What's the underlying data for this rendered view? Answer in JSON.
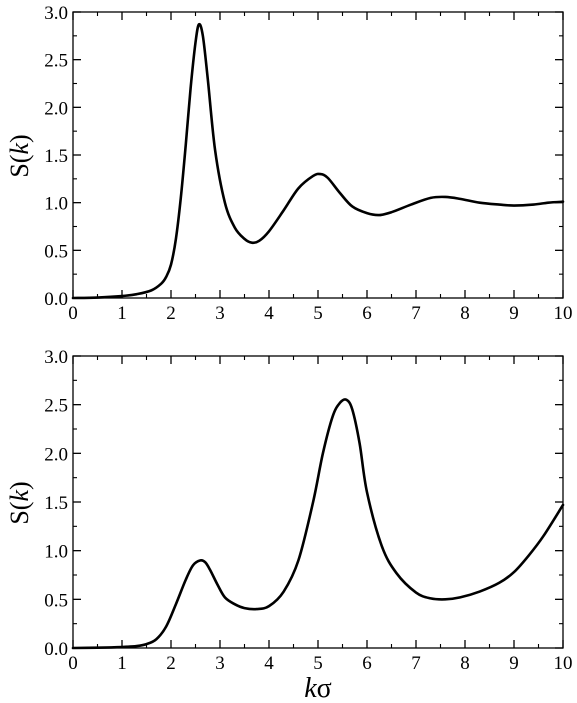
{
  "chart_data": [
    {
      "type": "line",
      "panel": "top",
      "ylabel_base": "S(",
      "ylabel_var": "k",
      "ylabel_close": ")",
      "xlim": [
        0,
        10
      ],
      "ylim": [
        0,
        3
      ],
      "xticks": [
        "0",
        "1",
        "2",
        "3",
        "4",
        "5",
        "6",
        "7",
        "8",
        "9",
        "10"
      ],
      "yticks": [
        "0.0",
        "0.5",
        "1.0",
        "1.5",
        "2.0",
        "2.5",
        "3.0"
      ],
      "series": [
        {
          "x": [
            0,
            0.5,
            1.0,
            1.3,
            1.6,
            1.8,
            1.9,
            2.0,
            2.1,
            2.2,
            2.3,
            2.4,
            2.5,
            2.57,
            2.65,
            2.75,
            2.9,
            3.1,
            3.3,
            3.5,
            3.65,
            3.8,
            4.0,
            4.3,
            4.6,
            4.9,
            5.05,
            5.2,
            5.45,
            5.7,
            6.0,
            6.25,
            6.5,
            6.9,
            7.3,
            7.6,
            7.9,
            8.3,
            8.7,
            9.0,
            9.4,
            9.7,
            10.0
          ],
          "y": [
            0,
            0.005,
            0.02,
            0.04,
            0.08,
            0.15,
            0.22,
            0.35,
            0.62,
            1.05,
            1.6,
            2.2,
            2.68,
            2.87,
            2.75,
            2.3,
            1.55,
            1.0,
            0.74,
            0.62,
            0.58,
            0.6,
            0.7,
            0.92,
            1.15,
            1.28,
            1.3,
            1.26,
            1.1,
            0.96,
            0.89,
            0.87,
            0.9,
            0.98,
            1.05,
            1.06,
            1.04,
            1.0,
            0.98,
            0.97,
            0.98,
            1.0,
            1.01
          ]
        }
      ]
    },
    {
      "type": "line",
      "panel": "bottom",
      "ylabel_base": "S(",
      "ylabel_var": "k",
      "ylabel_close": ")",
      "xlabel_var": "k",
      "xlabel_sym": "σ",
      "xlim": [
        0,
        10
      ],
      "ylim": [
        0,
        3
      ],
      "xticks": [
        "0",
        "1",
        "2",
        "3",
        "4",
        "5",
        "6",
        "7",
        "8",
        "9",
        "10"
      ],
      "yticks": [
        "0.0",
        "0.5",
        "1.0",
        "1.5",
        "2.0",
        "2.5",
        "3.0"
      ],
      "series": [
        {
          "x": [
            0,
            0.5,
            1.0,
            1.3,
            1.5,
            1.7,
            1.9,
            2.1,
            2.3,
            2.45,
            2.6,
            2.7,
            2.8,
            2.95,
            3.1,
            3.3,
            3.5,
            3.75,
            4.0,
            4.3,
            4.6,
            4.9,
            5.1,
            5.3,
            5.45,
            5.58,
            5.7,
            5.85,
            6.0,
            6.3,
            6.6,
            7.0,
            7.3,
            7.6,
            7.9,
            8.3,
            8.7,
            9.0,
            9.3,
            9.6,
            10.0
          ],
          "y": [
            0,
            0.003,
            0.01,
            0.02,
            0.04,
            0.09,
            0.22,
            0.45,
            0.7,
            0.85,
            0.9,
            0.88,
            0.8,
            0.65,
            0.52,
            0.45,
            0.41,
            0.4,
            0.43,
            0.58,
            0.9,
            1.5,
            2.0,
            2.38,
            2.52,
            2.55,
            2.45,
            2.1,
            1.6,
            1.05,
            0.77,
            0.57,
            0.51,
            0.5,
            0.52,
            0.58,
            0.67,
            0.78,
            0.95,
            1.15,
            1.47
          ]
        }
      ]
    }
  ]
}
